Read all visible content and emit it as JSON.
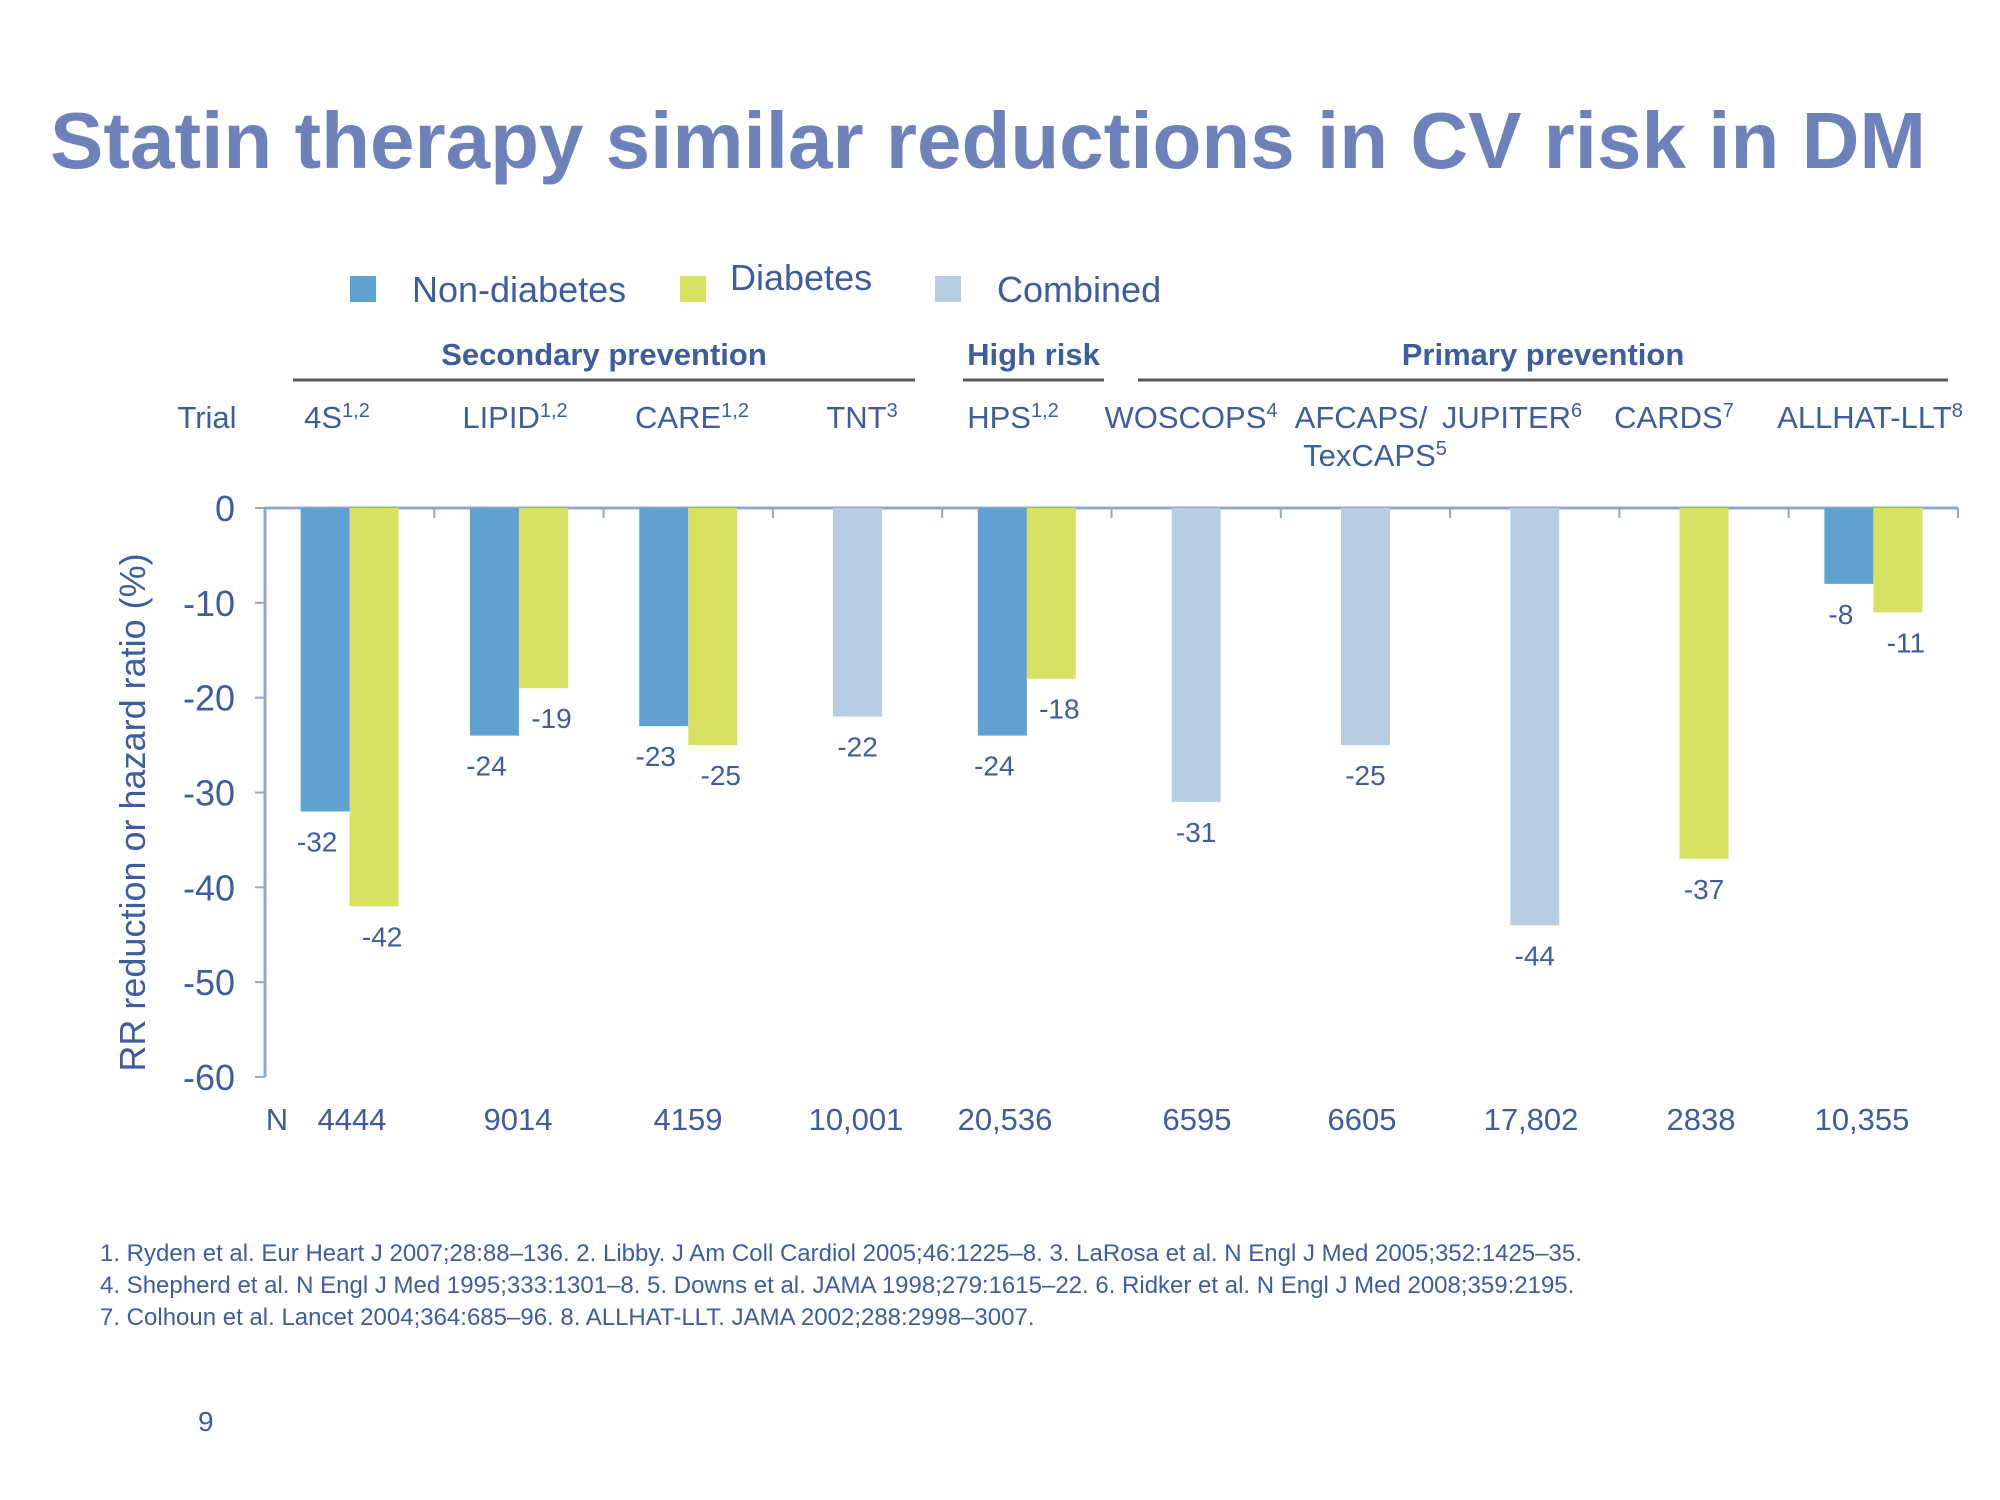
{
  "slide": {
    "title": "Statin therapy similar reductions in CV risk in DM",
    "page_number": "9",
    "references": [
      "1. Ryden et al. Eur Heart J 2007;28:88–136.  2. Libby. J Am Coll Cardiol 2005;46:1225–8.  3. LaRosa et al. N Engl J Med 2005;352:1425–35.",
      "4. Shepherd et al. N Engl J Med 1995;333:1301–8.  5. Downs et al. JAMA 1998;279:1615–22.  6. Ridker et al. N Engl J Med 2008;359:2195.",
      "7. Colhoun et al. Lancet 2004;364:685–96.  8. ALLHAT-LLT. JAMA 2002;288:2998–3007."
    ]
  },
  "colors": {
    "non_diabetes": "#5fa2d2",
    "diabetes": "#d7e061",
    "combined": "#b6cde3",
    "axis": "#8fa8cc",
    "text": "#3d5d9e",
    "group_line": "#595959"
  },
  "chart_data": {
    "type": "bar",
    "title": "Statin therapy similar reductions in CV risk in DM",
    "ylabel": "RR reduction or hazard ratio  (%)",
    "ylim": [
      -60,
      0
    ],
    "yticks": [
      0,
      -10,
      -20,
      -30,
      -40,
      -50,
      -60
    ],
    "trial_row_label": "Trial",
    "n_row_label": "N",
    "legend": [
      {
        "key": "non_diabetes",
        "label": "Non-diabetes"
      },
      {
        "key": "diabetes",
        "label": "Diabetes"
      },
      {
        "key": "combined",
        "label": "Combined"
      }
    ],
    "groups": [
      {
        "label": "Secondary prevention",
        "trials": [
          0,
          3
        ]
      },
      {
        "label": "High risk",
        "trials": [
          4,
          4
        ]
      },
      {
        "label": "Primary prevention",
        "trials": [
          5,
          9
        ]
      }
    ],
    "trials": [
      {
        "name": "4S",
        "sup": "1,2",
        "n": "4444",
        "non_diabetes": -32,
        "diabetes": -42,
        "combined": null
      },
      {
        "name": "LIPID",
        "sup": "1,2",
        "n": "9014",
        "non_diabetes": -24,
        "diabetes": -19,
        "combined": null
      },
      {
        "name": "CARE",
        "sup": "1,2",
        "n": "4159",
        "non_diabetes": -23,
        "diabetes": -25,
        "combined": null
      },
      {
        "name": "TNT",
        "sup": "3",
        "n": "10,001",
        "non_diabetes": null,
        "diabetes": null,
        "combined": -22
      },
      {
        "name": "HPS",
        "sup": "1,2",
        "n": "20,536",
        "non_diabetes": -24,
        "diabetes": -18,
        "combined": null
      },
      {
        "name": "WOSCOPS",
        "sup": "4",
        "n": "6595",
        "non_diabetes": null,
        "diabetes": null,
        "combined": -31
      },
      {
        "name": "AFCAPS/",
        "name2": "TexCAPS",
        "sup": "5",
        "n": "6605",
        "non_diabetes": null,
        "diabetes": null,
        "combined": -25
      },
      {
        "name": "JUPITER",
        "sup": "6",
        "n": "17,802",
        "non_diabetes": null,
        "diabetes": null,
        "combined": -44
      },
      {
        "name": "CARDS",
        "sup": "7",
        "n": "2838",
        "non_diabetes": null,
        "diabetes": -37,
        "combined": null
      },
      {
        "name": "ALLHAT-LLT",
        "sup": "8",
        "n": "10,355",
        "non_diabetes": -8,
        "diabetes": -11,
        "combined": null
      }
    ]
  }
}
